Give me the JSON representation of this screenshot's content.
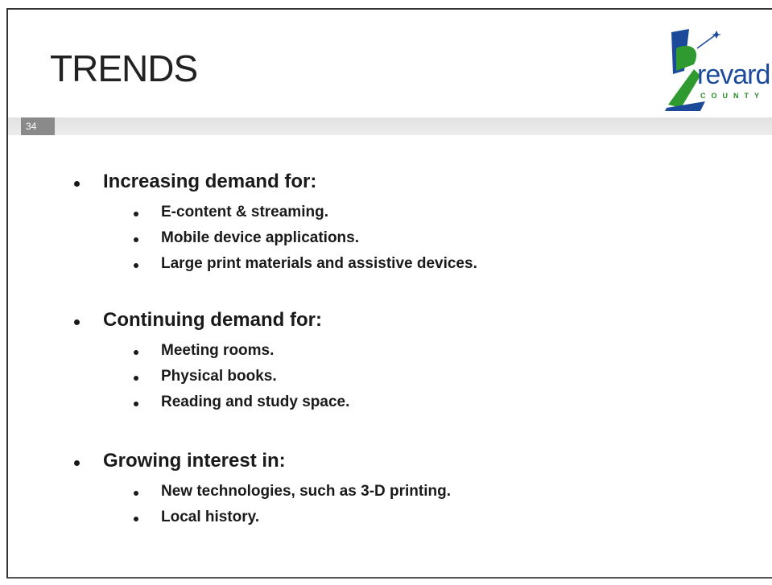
{
  "slide": {
    "title": "TRENDS",
    "page_number": "34",
    "logo": {
      "word": "revard",
      "county": "COUNTY"
    },
    "sections": [
      {
        "heading": "Increasing demand for:",
        "items": [
          "E-content & streaming.",
          "Mobile device applications.",
          "Large print materials and assistive devices."
        ]
      },
      {
        "heading": "Continuing demand for:",
        "items": [
          "Meeting rooms.",
          "Physical books.",
          "Reading and study space."
        ]
      },
      {
        "heading": "Growing interest in:",
        "items": [
          "New technologies, such as 3-D printing.",
          "Local history."
        ]
      }
    ]
  }
}
